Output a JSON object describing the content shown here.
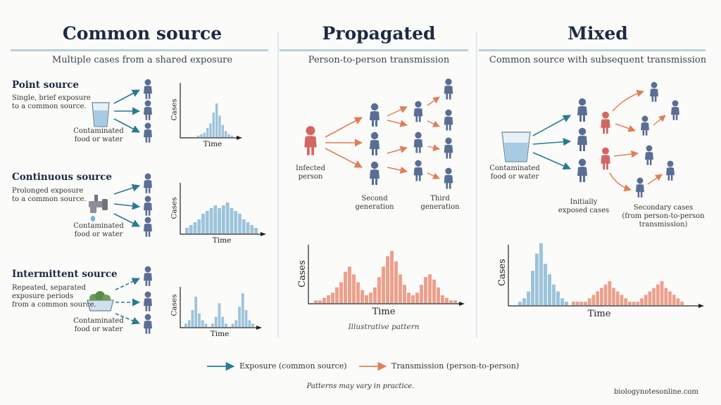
{
  "colors": {
    "title": "#1d2a44",
    "exposure_arrow": "#2a7a92",
    "transmission_arrow": "#e07e58",
    "person_blue": "#5a6e94",
    "person_red": "#d46662",
    "bar_blue": "#9cc3dc",
    "bar_red": "#eba08c",
    "divider": "#b8cfdc"
  },
  "columns": {
    "common_source": {
      "title": "Common source",
      "subtitle": "Multiple cases from a shared exposure",
      "rows": [
        {
          "heading": "Point source",
          "description": [
            "Single, brief exposure",
            "to a common source."
          ],
          "source_label": [
            "Contaminated",
            "food or water"
          ],
          "source_icon": "glass-of-water-icon",
          "arrow_style": "solid",
          "y_label": "Cases",
          "x_label": "Time",
          "bars": [
            1,
            2,
            3,
            6,
            9,
            16,
            22,
            14,
            8,
            4,
            2,
            1
          ]
        },
        {
          "heading": "Continuous source",
          "description": [
            "Prolonged exposure",
            "to a common source."
          ],
          "source_label": [
            "Contaminated",
            "food or water"
          ],
          "source_icon": "faucet-icon",
          "arrow_style": "solid",
          "y_label": "Cases",
          "x_label": "Time",
          "bars": [
            2,
            3,
            4,
            5,
            7,
            8,
            9,
            10,
            9,
            10,
            11,
            9,
            8,
            7,
            5,
            4,
            3,
            2
          ]
        },
        {
          "heading": "Intermittent source",
          "description": [
            "Repeated, separated",
            "exposure periods",
            "from a common source."
          ],
          "source_label": [
            "Contaminated",
            "food or water"
          ],
          "source_icon": "food-bowl-icon",
          "arrow_style": "dashed",
          "y_label": "Cases",
          "x_label": "Time",
          "bars": [
            1,
            2,
            5,
            9,
            4,
            2,
            1,
            0,
            1,
            3,
            7,
            3,
            1,
            0,
            1,
            2,
            6,
            10,
            5,
            2,
            1
          ]
        }
      ]
    },
    "propagated": {
      "title": "Propagated",
      "subtitle": "Person-to-person transmission",
      "labels": {
        "infected": [
          "Infected",
          "person"
        ],
        "second": [
          "Second",
          "generation"
        ],
        "third": [
          "Third",
          "generation"
        ]
      },
      "y_label": "Cases",
      "x_label": "Time",
      "caption": "Illustrative pattern",
      "bars": [
        1,
        1,
        2,
        3,
        4,
        6,
        8,
        12,
        14,
        11,
        8,
        5,
        3,
        4,
        6,
        10,
        14,
        18,
        20,
        16,
        11,
        7,
        4,
        3,
        4,
        7,
        10,
        11,
        9,
        6,
        3,
        2,
        1,
        1
      ]
    },
    "mixed": {
      "title": "Mixed",
      "subtitle": "Common source with subsequent transmission",
      "labels": {
        "source": [
          "Contaminated",
          "food or water"
        ],
        "initial": [
          "Initially",
          "exposed cases"
        ],
        "secondary": [
          "Secondary cases",
          "(from person-to-person",
          "transmission)"
        ]
      },
      "y_label": "Cases",
      "x_label": "Time",
      "bars_blue": [
        1,
        2,
        4,
        10,
        15,
        18,
        12,
        9,
        6,
        4,
        2,
        1
      ],
      "bars_red": [
        1,
        1,
        1,
        1,
        2,
        3,
        4,
        5,
        6,
        7,
        5,
        4,
        3,
        2,
        1,
        1,
        1,
        2,
        3,
        4,
        5,
        6,
        7,
        5,
        4,
        3,
        2,
        1
      ]
    }
  },
  "legend": {
    "exposure": "Exposure (common source)",
    "transmission": "Transmission (person-to-person)"
  },
  "footer": {
    "note": "Patterns may vary in practice.",
    "source": "biologynotesonline.com"
  }
}
